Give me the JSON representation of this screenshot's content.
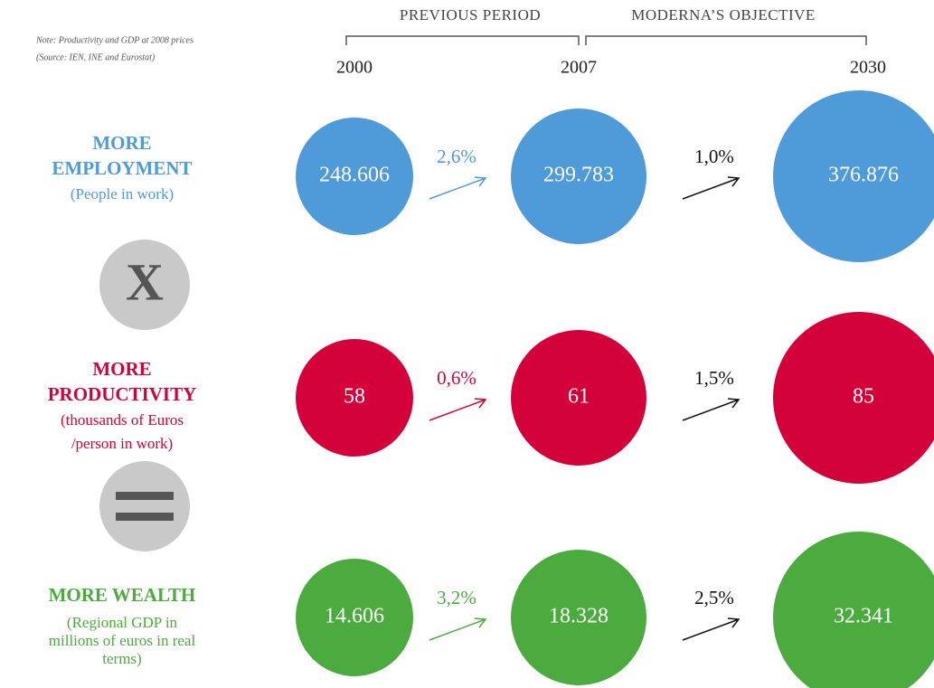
{
  "header": {
    "periods": [
      "PREVIOUS PERIOD",
      "MODERNA’S OBJECTIVE"
    ],
    "note": [
      "Note: Productivity and GDP at 2008 prices",
      "(Source: IEN, INE and Eurostat)"
    ],
    "years": [
      "2000",
      "2007",
      "2030"
    ]
  },
  "rows": [
    {
      "label": [
        "MORE",
        "EMPLOYMENT"
      ],
      "sub": [
        "(People in work)"
      ],
      "values": [
        "248.606",
        "299.783",
        "376.876"
      ],
      "rates": [
        "2,6%",
        "1,0%"
      ]
    },
    {
      "label": [
        "MORE",
        "PRODUCTIVITY"
      ],
      "sub": [
        "(thousands of Euros",
        "/person in work)"
      ],
      "values": [
        "58",
        "61",
        "85"
      ],
      "rates": [
        "0,6%",
        "1,5%"
      ]
    },
    {
      "label": [
        "MORE WEALTH"
      ],
      "sub": [
        "(Regional GDP in",
        "millions of euros in real",
        "terms)"
      ],
      "values": [
        "14.606",
        "18.328",
        "32.341"
      ],
      "rates": [
        "3,2%",
        "2,5%"
      ]
    }
  ],
  "operators": [
    "X"
  ]
}
